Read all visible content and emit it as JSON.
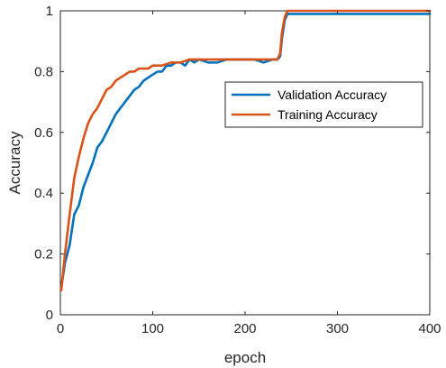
{
  "chart_data": {
    "type": "line",
    "xlabel": "epoch",
    "ylabel": "Accuracy",
    "xlim": [
      0,
      400
    ],
    "ylim": [
      0,
      1
    ],
    "xticks": [
      0,
      100,
      200,
      300,
      400
    ],
    "yticks": [
      0,
      0.2,
      0.4,
      0.6,
      0.8,
      1
    ],
    "xtick_labels": [
      "0",
      "100",
      "200",
      "300",
      "400"
    ],
    "ytick_labels": [
      "0",
      "0.2",
      "0.4",
      "0.6",
      "0.8",
      "1"
    ],
    "grid": false,
    "legend_position": "right",
    "series": [
      {
        "name": "Validation Accuracy",
        "color": "#0072BD",
        "x": [
          1,
          5,
          10,
          15,
          20,
          25,
          30,
          35,
          40,
          45,
          50,
          55,
          60,
          65,
          70,
          75,
          80,
          85,
          90,
          95,
          100,
          105,
          110,
          115,
          120,
          125,
          130,
          135,
          140,
          145,
          150,
          160,
          170,
          180,
          190,
          200,
          210,
          220,
          230,
          235,
          238,
          240,
          243,
          246,
          250,
          260,
          280,
          300,
          320,
          340,
          360,
          380,
          400
        ],
        "y": [
          0.09,
          0.17,
          0.23,
          0.33,
          0.36,
          0.42,
          0.46,
          0.5,
          0.55,
          0.57,
          0.6,
          0.63,
          0.66,
          0.68,
          0.7,
          0.72,
          0.74,
          0.75,
          0.77,
          0.78,
          0.79,
          0.8,
          0.8,
          0.82,
          0.82,
          0.83,
          0.83,
          0.82,
          0.84,
          0.83,
          0.84,
          0.83,
          0.83,
          0.84,
          0.84,
          0.84,
          0.84,
          0.83,
          0.84,
          0.84,
          0.85,
          0.91,
          0.97,
          0.99,
          0.99,
          0.99,
          0.99,
          0.99,
          0.99,
          0.99,
          0.99,
          0.99,
          0.99
        ]
      },
      {
        "name": "Training Accuracy",
        "color": "#D95319",
        "x": [
          1,
          5,
          10,
          15,
          20,
          25,
          30,
          35,
          40,
          45,
          50,
          55,
          60,
          65,
          70,
          75,
          80,
          85,
          90,
          95,
          100,
          110,
          120,
          130,
          140,
          150,
          160,
          170,
          180,
          190,
          200,
          210,
          220,
          230,
          235,
          238,
          240,
          243,
          246,
          250,
          260,
          280,
          300,
          320,
          340,
          360,
          380,
          400
        ],
        "y": [
          0.08,
          0.2,
          0.33,
          0.45,
          0.52,
          0.58,
          0.63,
          0.66,
          0.68,
          0.71,
          0.74,
          0.75,
          0.77,
          0.78,
          0.79,
          0.8,
          0.8,
          0.81,
          0.81,
          0.81,
          0.82,
          0.82,
          0.83,
          0.83,
          0.84,
          0.84,
          0.84,
          0.84,
          0.84,
          0.84,
          0.84,
          0.84,
          0.84,
          0.84,
          0.84,
          0.86,
          0.93,
          0.98,
          1.0,
          1.0,
          1.0,
          1.0,
          1.0,
          1.0,
          1.0,
          1.0,
          1.0,
          1.0
        ]
      }
    ]
  }
}
